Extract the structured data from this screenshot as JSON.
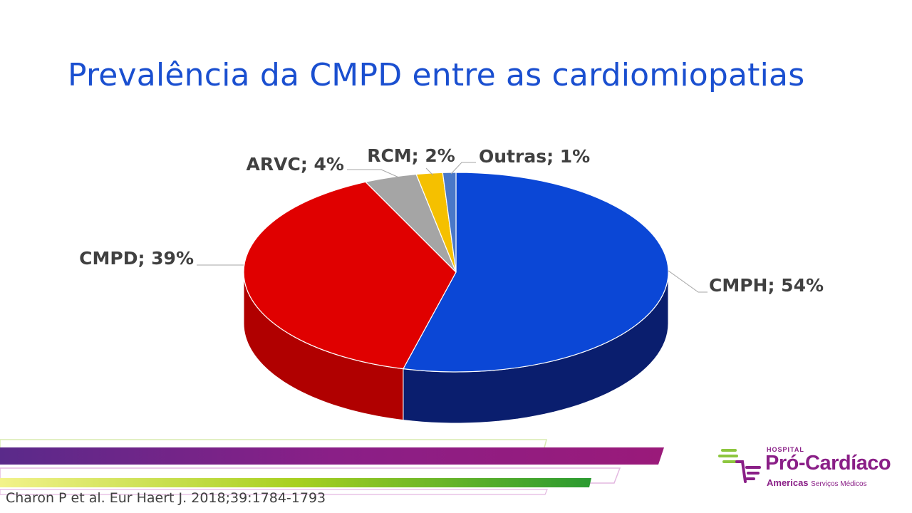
{
  "slide": {
    "title": "Prevalência da CMPD entre as cardiomiopatias",
    "citation": "Charon P et al. Eur Haert J. 2018;39:1784-1793"
  },
  "logo": {
    "hospital": "HOSPITAL",
    "name": "Pró-Cardíaco",
    "sub_main": "Americas",
    "sub_small": "Serviços Médicos",
    "colors": {
      "green": "#8dc63f",
      "purple": "#8a1f87"
    }
  },
  "chart_data": {
    "type": "pie",
    "style": "3d",
    "title": "",
    "slices": [
      {
        "label": "CMPH",
        "value": 54,
        "display": "CMPH; 54%",
        "color": "#0b47d6",
        "side_color": "#0a1e6e"
      },
      {
        "label": "CMPD",
        "value": 39,
        "display": "CMPD; 39%",
        "color": "#e00000",
        "side_color": "#b00000"
      },
      {
        "label": "ARVC",
        "value": 4,
        "display": "ARVC; 4%",
        "color": "#a5a5a5",
        "side_color": "#7a7a7a"
      },
      {
        "label": "RCM",
        "value": 2,
        "display": "RCM; 2%",
        "color": "#f5c000",
        "side_color": "#c09000"
      },
      {
        "label": "Outras",
        "value": 1,
        "display": "Outras; 1%",
        "color": "#4a78c8",
        "side_color": "#2a4a90"
      }
    ],
    "start_angle_deg": 0,
    "direction": "clockwise",
    "legend": "none"
  },
  "decor": {
    "bar_purple": "#8a1f87",
    "bar_green": "#7dbb1f"
  }
}
